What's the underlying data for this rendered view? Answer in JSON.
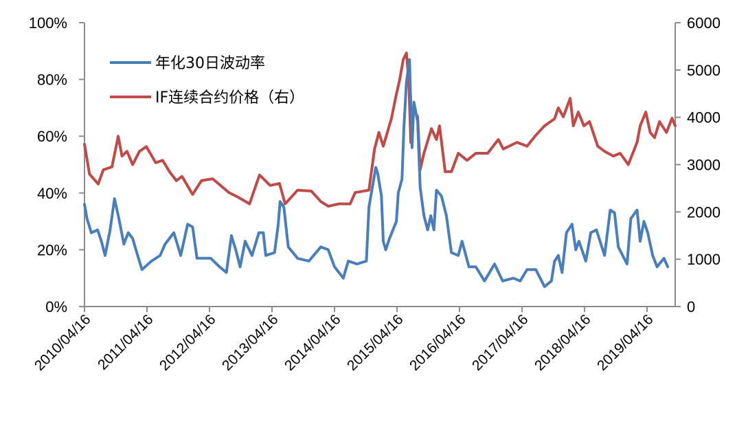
{
  "chart_data": {
    "type": "line",
    "title": "",
    "x_unit": "years since 2010/04/16",
    "xlim": [
      0,
      9.45
    ],
    "x_ticks": [
      0,
      1,
      2,
      3,
      4,
      5,
      6,
      7,
      8,
      9
    ],
    "x_tick_labels": [
      "2010/04/16",
      "2011/04/16",
      "2012/04/16",
      "2013/04/16",
      "2014/04/16",
      "2015/04/16",
      "2016/04/16",
      "2017/04/16",
      "2018/04/16",
      "2019/04/16"
    ],
    "y_left": {
      "range": [
        0,
        100
      ],
      "ticks": [
        0,
        20,
        40,
        60,
        80,
        100
      ],
      "tick_labels": [
        "0%",
        "20%",
        "40%",
        "60%",
        "80%",
        "100%"
      ]
    },
    "y_right": {
      "range": [
        0,
        6000
      ],
      "ticks": [
        0,
        1000,
        2000,
        3000,
        4000,
        5000,
        6000
      ],
      "tick_labels": [
        "0",
        "1000",
        "2000",
        "3000",
        "4000",
        "5000",
        "6000"
      ]
    },
    "grid": false,
    "legend_position": "top-left",
    "series": [
      {
        "name": "年化30日波动率",
        "axis": "left",
        "color": "#4a7ebb",
        "points": [
          [
            0,
            36
          ],
          [
            0.04,
            31
          ],
          [
            0.11,
            26
          ],
          [
            0.21,
            27
          ],
          [
            0.27,
            23
          ],
          [
            0.33,
            18
          ],
          [
            0.41,
            27
          ],
          [
            0.48,
            38
          ],
          [
            0.55,
            31
          ],
          [
            0.63,
            22
          ],
          [
            0.7,
            26
          ],
          [
            0.77,
            24
          ],
          [
            0.85,
            18
          ],
          [
            0.92,
            13
          ],
          [
            1.07,
            16
          ],
          [
            1.21,
            18
          ],
          [
            1.29,
            22
          ],
          [
            1.43,
            26
          ],
          [
            1.54,
            18
          ],
          [
            1.65,
            29
          ],
          [
            1.73,
            28
          ],
          [
            1.8,
            17
          ],
          [
            2.02,
            17
          ],
          [
            2.16,
            14
          ],
          [
            2.27,
            12
          ],
          [
            2.35,
            25
          ],
          [
            2.42,
            20
          ],
          [
            2.49,
            14
          ],
          [
            2.57,
            23
          ],
          [
            2.68,
            18
          ],
          [
            2.79,
            26
          ],
          [
            2.86,
            26
          ],
          [
            2.9,
            18
          ],
          [
            3.04,
            19
          ],
          [
            3.1,
            29
          ],
          [
            3.13,
            37
          ],
          [
            3.19,
            35
          ],
          [
            3.26,
            21
          ],
          [
            3.41,
            17
          ],
          [
            3.59,
            16
          ],
          [
            3.78,
            21
          ],
          [
            3.9,
            20
          ],
          [
            4.0,
            14
          ],
          [
            4.14,
            10
          ],
          [
            4.22,
            16
          ],
          [
            4.36,
            15
          ],
          [
            4.51,
            16
          ],
          [
            4.55,
            35
          ],
          [
            4.66,
            49
          ],
          [
            4.69,
            47
          ],
          [
            4.75,
            39
          ],
          [
            4.78,
            23
          ],
          [
            4.82,
            20
          ],
          [
            4.88,
            24
          ],
          [
            4.99,
            30
          ],
          [
            5.02,
            40
          ],
          [
            5.08,
            45
          ],
          [
            5.11,
            63
          ],
          [
            5.15,
            79
          ],
          [
            5.2,
            87
          ],
          [
            5.24,
            56
          ],
          [
            5.27,
            72
          ],
          [
            5.33,
            65
          ],
          [
            5.37,
            42
          ],
          [
            5.43,
            32
          ],
          [
            5.49,
            27
          ],
          [
            5.54,
            32
          ],
          [
            5.59,
            27
          ],
          [
            5.63,
            41
          ],
          [
            5.71,
            39
          ],
          [
            5.79,
            32
          ],
          [
            5.87,
            19
          ],
          [
            5.98,
            18
          ],
          [
            6.04,
            23
          ],
          [
            6.15,
            14
          ],
          [
            6.26,
            14
          ],
          [
            6.4,
            9
          ],
          [
            6.56,
            15
          ],
          [
            6.69,
            9
          ],
          [
            6.86,
            10
          ],
          [
            6.97,
            9
          ],
          [
            7.08,
            13
          ],
          [
            7.22,
            13
          ],
          [
            7.36,
            7
          ],
          [
            7.47,
            9
          ],
          [
            7.52,
            16
          ],
          [
            7.58,
            18
          ],
          [
            7.64,
            12
          ],
          [
            7.71,
            26
          ],
          [
            7.8,
            29
          ],
          [
            7.86,
            20
          ],
          [
            7.91,
            23
          ],
          [
            8.02,
            16
          ],
          [
            8.1,
            26
          ],
          [
            8.19,
            27
          ],
          [
            8.32,
            18
          ],
          [
            8.41,
            34
          ],
          [
            8.48,
            33
          ],
          [
            8.54,
            21
          ],
          [
            8.68,
            15
          ],
          [
            8.74,
            31
          ],
          [
            8.84,
            34
          ],
          [
            8.89,
            23
          ],
          [
            8.95,
            30
          ],
          [
            9.01,
            26
          ],
          [
            9.09,
            18
          ],
          [
            9.16,
            14
          ],
          [
            9.27,
            17
          ],
          [
            9.33,
            14
          ]
        ]
      },
      {
        "name": "IF连续合约价格（右）",
        "axis": "right",
        "color": "#be4b48",
        "points": [
          [
            0,
            3430
          ],
          [
            0.08,
            2800
          ],
          [
            0.22,
            2590
          ],
          [
            0.3,
            2890
          ],
          [
            0.44,
            2950
          ],
          [
            0.54,
            3600
          ],
          [
            0.6,
            3180
          ],
          [
            0.68,
            3280
          ],
          [
            0.77,
            3000
          ],
          [
            0.88,
            3280
          ],
          [
            0.99,
            3380
          ],
          [
            1.14,
            3040
          ],
          [
            1.25,
            3090
          ],
          [
            1.36,
            2850
          ],
          [
            1.47,
            2660
          ],
          [
            1.56,
            2750
          ],
          [
            1.73,
            2370
          ],
          [
            1.87,
            2660
          ],
          [
            2.05,
            2700
          ],
          [
            2.31,
            2410
          ],
          [
            2.46,
            2310
          ],
          [
            2.64,
            2170
          ],
          [
            2.8,
            2780
          ],
          [
            2.97,
            2560
          ],
          [
            3.12,
            2600
          ],
          [
            3.21,
            2170
          ],
          [
            3.41,
            2460
          ],
          [
            3.63,
            2440
          ],
          [
            3.78,
            2220
          ],
          [
            3.9,
            2120
          ],
          [
            4.07,
            2170
          ],
          [
            4.25,
            2170
          ],
          [
            4.33,
            2410
          ],
          [
            4.55,
            2460
          ],
          [
            4.64,
            3330
          ],
          [
            4.71,
            3680
          ],
          [
            4.78,
            3390
          ],
          [
            4.91,
            3970
          ],
          [
            4.99,
            4490
          ],
          [
            5.04,
            4780
          ],
          [
            5.1,
            5220
          ],
          [
            5.15,
            5360
          ],
          [
            5.19,
            4740
          ],
          [
            5.22,
            3470
          ],
          [
            5.27,
            4160
          ],
          [
            5.33,
            4010
          ],
          [
            5.37,
            2890
          ],
          [
            5.43,
            3240
          ],
          [
            5.55,
            3760
          ],
          [
            5.63,
            3530
          ],
          [
            5.68,
            3820
          ],
          [
            5.77,
            2850
          ],
          [
            5.87,
            2850
          ],
          [
            5.98,
            3240
          ],
          [
            6.12,
            3090
          ],
          [
            6.26,
            3240
          ],
          [
            6.45,
            3240
          ],
          [
            6.62,
            3530
          ],
          [
            6.7,
            3330
          ],
          [
            6.92,
            3470
          ],
          [
            7.08,
            3390
          ],
          [
            7.22,
            3620
          ],
          [
            7.36,
            3820
          ],
          [
            7.52,
            3970
          ],
          [
            7.58,
            4200
          ],
          [
            7.66,
            4010
          ],
          [
            7.77,
            4400
          ],
          [
            7.82,
            3820
          ],
          [
            7.9,
            4110
          ],
          [
            7.99,
            3820
          ],
          [
            8.08,
            3910
          ],
          [
            8.21,
            3390
          ],
          [
            8.32,
            3280
          ],
          [
            8.46,
            3180
          ],
          [
            8.57,
            3240
          ],
          [
            8.7,
            3000
          ],
          [
            8.84,
            3470
          ],
          [
            8.89,
            3820
          ],
          [
            8.98,
            4110
          ],
          [
            9.05,
            3680
          ],
          [
            9.12,
            3570
          ],
          [
            9.2,
            3910
          ],
          [
            9.31,
            3680
          ],
          [
            9.4,
            3980
          ],
          [
            9.45,
            3820
          ]
        ]
      }
    ]
  }
}
